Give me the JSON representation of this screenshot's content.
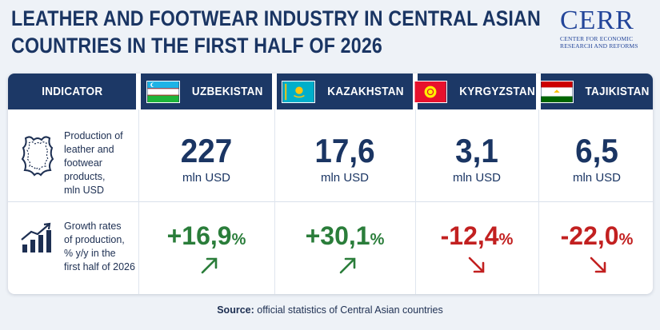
{
  "title": {
    "line1": "LEATHER AND FOOTWEAR INDUSTRY IN CENTRAL ASIAN",
    "line2": "COUNTRIES IN THE FIRST HALF OF 2026"
  },
  "logo": {
    "word": "CERR",
    "sub1": "CENTER FOR ECONOMIC",
    "sub2": "RESEARCH AND REFORMS"
  },
  "header": {
    "indicator": "INDICATOR",
    "countries": [
      "UZBEKISTAN",
      "KAZAKHSTAN",
      "KYRGYZSTAN",
      "TAJIKISTAN"
    ]
  },
  "rows": {
    "production": {
      "label": "Production of leather and footwear products, mln USD",
      "label_lines": [
        "Production of",
        "leather and",
        "footwear products,",
        "mln USD"
      ],
      "icon": "leather-hide-icon",
      "values": [
        "227",
        "17,6",
        "3,1",
        "6,5"
      ],
      "unit": "mln USD"
    },
    "growth": {
      "label": "Growth rates of production, % y/y in the first half of 2026",
      "label_lines": [
        "Growth rates",
        "of production,",
        "% y/y in the",
        "first half of 2026"
      ],
      "icon": "growth-chart-icon",
      "values": [
        "+16,9",
        "+30,1",
        "-12,4",
        "-22,0"
      ],
      "pct": "%",
      "direction": [
        "up",
        "up",
        "down",
        "down"
      ]
    }
  },
  "source": {
    "label": "Source:",
    "text": "official statistics of Central Asian countries"
  },
  "colors": {
    "header_bg": "#1c3866",
    "title": "#1a3563",
    "positive": "#2a7d3a",
    "negative": "#c22020"
  }
}
